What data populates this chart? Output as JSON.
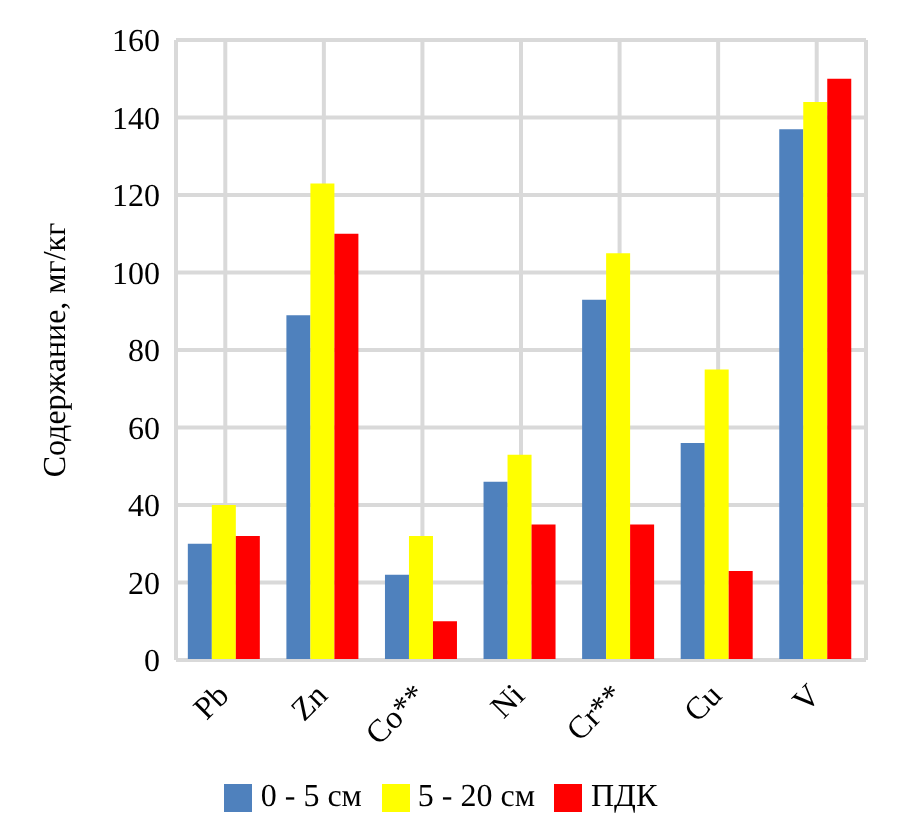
{
  "chart_data": {
    "type": "bar",
    "ylabel": "Содержание, мг/кг",
    "categories": [
      "Pb",
      "Zn",
      "Co**",
      "Ni",
      "Cr**",
      "Cu",
      "V"
    ],
    "series": [
      {
        "name": "0 - 5 см",
        "color": "#4f81bd",
        "values": [
          30,
          89,
          22,
          46,
          93,
          56,
          137
        ]
      },
      {
        "name": "5 - 20 см",
        "color": "#ffff00",
        "values": [
          40,
          123,
          32,
          53,
          105,
          75,
          144
        ]
      },
      {
        "name": "ПДК",
        "color": "#ff0000",
        "values": [
          32,
          110,
          10,
          35,
          35,
          23,
          150
        ]
      }
    ],
    "ylim": [
      0,
      160
    ],
    "yticks": [
      0,
      20,
      40,
      60,
      80,
      100,
      120,
      140,
      160
    ],
    "grid": true,
    "legend": "bottom"
  }
}
